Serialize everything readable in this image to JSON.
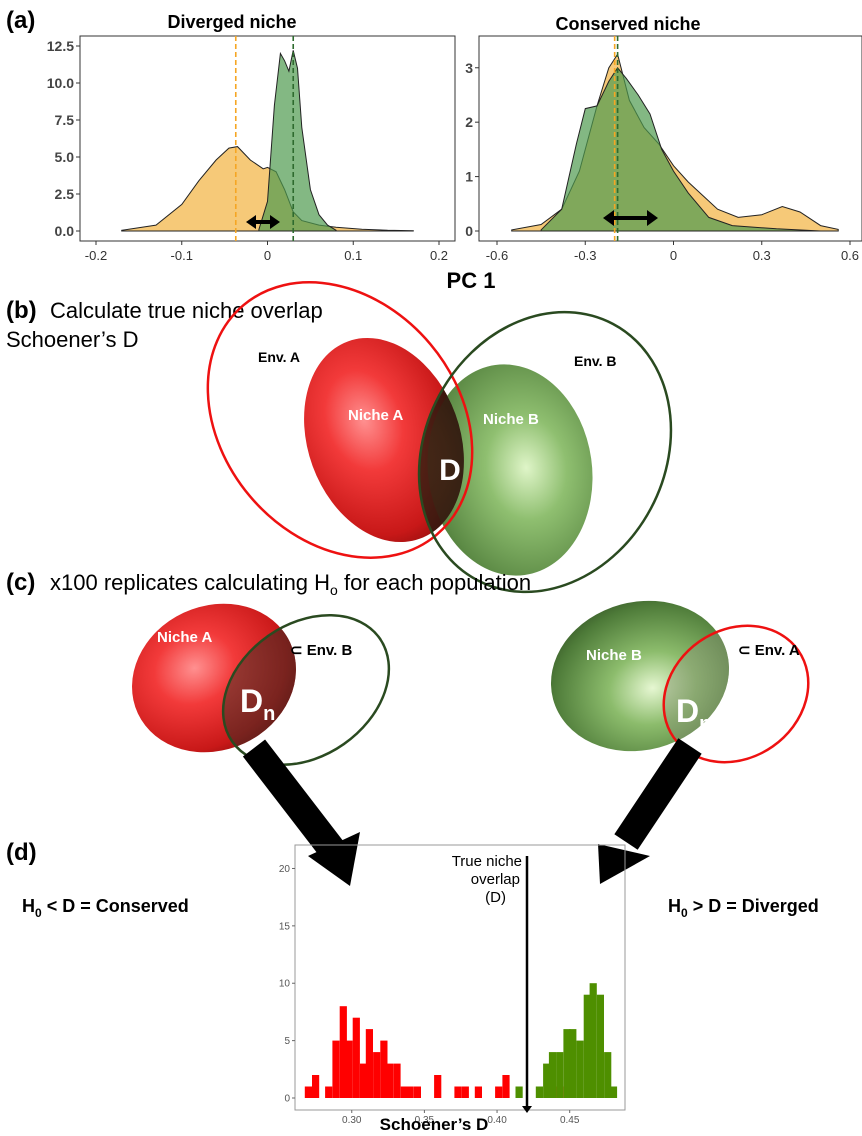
{
  "panel_a": {
    "label": "(a)",
    "xlabel": "PC 1",
    "left": {
      "title": "Diverged niche",
      "xticks": [
        "-0.2",
        "-0.1",
        "0",
        "0.1",
        "0.2"
      ],
      "yticks": [
        "0.0",
        "2.5",
        "5.0",
        "7.5",
        "10.0",
        "12.5"
      ]
    },
    "right": {
      "title": "Conserved niche",
      "xticks": [
        "-0.6",
        "-0.3",
        "0",
        "0.3",
        "0.6"
      ],
      "yticks": [
        "0",
        "1",
        "2",
        "3"
      ]
    }
  },
  "panel_b": {
    "label": "(b)",
    "title_line1": "Calculate true niche overlap",
    "title_line2": "Schoener’s D",
    "env_a": "Env. A",
    "env_b": "Env. B",
    "niche_a": "Niche A",
    "niche_b": "Niche B",
    "overlap": "D"
  },
  "panel_c": {
    "label": "(c)",
    "title_pre": "x100 replicates calculating H",
    "title_sub": "o",
    "title_post": " for each population",
    "left_niche": "Niche A",
    "left_env": "⊂ Env. B",
    "right_niche": "Niche B",
    "right_env": "⊂ Env. A",
    "dn": "D",
    "dn_sub": "n"
  },
  "panel_d": {
    "label": "(d)",
    "left_text_pre": "H",
    "left_text_sub": "0",
    "left_text_post": " < D = Conserved",
    "right_text_pre": "H",
    "right_text_sub": "0",
    "right_text_post": " > D = Diverged",
    "annotation_lines": [
      "True niche",
      "overlap",
      "(D)"
    ],
    "xlabel": "Schoener’s D",
    "xticks": [
      "0.30",
      "0.35",
      "0.40",
      "0.45"
    ],
    "yticks": [
      "0",
      "5",
      "10",
      "15",
      "20"
    ]
  },
  "colors": {
    "niche_a_red": "#e02020",
    "niche_b_green": "#6a9a50",
    "density_yellow": "#f5c060",
    "density_green": "#4f9a4f",
    "hist_red": "#ff0000",
    "hist_green": "#4e8f00"
  },
  "chart_data": [
    {
      "type": "area",
      "title": "Diverged niche",
      "xlabel": "PC 1",
      "xlim": [
        -0.2,
        0.2
      ],
      "ylim": [
        0,
        12.5
      ],
      "series": [
        {
          "name": "",
          "color": "#f5c060",
          "x": [
            -0.17,
            -0.13,
            -0.1,
            -0.08,
            -0.06,
            -0.045,
            -0.035,
            -0.02,
            -0.005,
            0.0,
            0.01,
            0.02,
            0.03,
            0.04,
            0.06,
            0.08,
            0.11,
            0.14,
            0.17
          ],
          "y": [
            0.05,
            0.4,
            1.8,
            3.4,
            4.8,
            5.6,
            5.7,
            4.8,
            4.2,
            4.3,
            4.0,
            2.8,
            1.3,
            0.7,
            0.4,
            0.25,
            0.12,
            0.05,
            0.02
          ]
        },
        {
          "name": "",
          "color": "#4f9a4f",
          "x": [
            -0.01,
            0.0,
            0.008,
            0.015,
            0.02,
            0.025,
            0.03,
            0.035,
            0.04,
            0.05,
            0.06,
            0.07,
            0.08
          ],
          "y": [
            0.1,
            2.0,
            8.5,
            12.0,
            11.5,
            10.8,
            12.2,
            11.0,
            7.0,
            2.8,
            1.1,
            0.4,
            0.05
          ]
        }
      ],
      "vlines": [
        {
          "x": -0.037,
          "color": "#f5a623"
        },
        {
          "x": 0.03,
          "color": "#2e6b2e"
        }
      ]
    },
    {
      "type": "area",
      "title": "Conserved niche",
      "xlabel": "PC 1",
      "xlim": [
        -0.6,
        0.6
      ],
      "ylim": [
        0,
        3.4
      ],
      "series": [
        {
          "name": "",
          "color": "#f5c060",
          "x": [
            -0.55,
            -0.45,
            -0.38,
            -0.32,
            -0.26,
            -0.22,
            -0.19,
            -0.15,
            -0.1,
            -0.05,
            0.0,
            0.05,
            0.1,
            0.15,
            0.22,
            0.3,
            0.37,
            0.43,
            0.5,
            0.56
          ],
          "y": [
            0.02,
            0.12,
            0.4,
            1.1,
            2.3,
            3.0,
            3.25,
            2.4,
            1.9,
            1.6,
            1.2,
            0.9,
            0.65,
            0.4,
            0.25,
            0.3,
            0.45,
            0.35,
            0.1,
            0.03
          ]
        },
        {
          "name": "",
          "color": "#4f9a4f",
          "x": [
            -0.45,
            -0.38,
            -0.33,
            -0.3,
            -0.26,
            -0.22,
            -0.19,
            -0.16,
            -0.12,
            -0.08,
            -0.04,
            0.0,
            0.05,
            0.12,
            0.2,
            0.35,
            0.5
          ],
          "y": [
            0.02,
            0.4,
            1.6,
            2.25,
            2.3,
            2.75,
            3.0,
            2.8,
            2.5,
            2.15,
            1.5,
            1.1,
            0.7,
            0.25,
            0.1,
            0.04,
            0.0
          ]
        }
      ],
      "vlines": [
        {
          "x": -0.2,
          "color": "#f5a623"
        },
        {
          "x": -0.19,
          "color": "#2e6b2e"
        }
      ]
    },
    {
      "type": "bar",
      "title": "",
      "xlabel": "Schoener’s D",
      "ylabel": "",
      "xlim": [
        0.263,
        0.486
      ],
      "ylim": [
        0,
        21
      ],
      "bin_width": 0.00466,
      "true_D": 0.419,
      "series": [
        {
          "name": "",
          "color": "#ff0000",
          "bins": [
            {
              "x": 0.27,
              "y": 1
            },
            {
              "x": 0.275,
              "y": 2
            },
            {
              "x": 0.28,
              "y": 0
            },
            {
              "x": 0.284,
              "y": 1
            },
            {
              "x": 0.289,
              "y": 5
            },
            {
              "x": 0.294,
              "y": 8
            },
            {
              "x": 0.298,
              "y": 5
            },
            {
              "x": 0.303,
              "y": 7
            },
            {
              "x": 0.308,
              "y": 3
            },
            {
              "x": 0.312,
              "y": 6
            },
            {
              "x": 0.317,
              "y": 4
            },
            {
              "x": 0.322,
              "y": 5
            },
            {
              "x": 0.326,
              "y": 3
            },
            {
              "x": 0.331,
              "y": 3
            },
            {
              "x": 0.336,
              "y": 1
            },
            {
              "x": 0.34,
              "y": 1
            },
            {
              "x": 0.345,
              "y": 1
            },
            {
              "x": 0.359,
              "y": 2
            },
            {
              "x": 0.373,
              "y": 1
            },
            {
              "x": 0.378,
              "y": 1
            },
            {
              "x": 0.387,
              "y": 1
            },
            {
              "x": 0.401,
              "y": 1
            },
            {
              "x": 0.406,
              "y": 2
            },
            {
              "x": 0.443,
              "y": 1
            }
          ]
        },
        {
          "name": "",
          "color": "#4e8f00",
          "bins": [
            {
              "x": 0.415,
              "y": 1
            },
            {
              "x": 0.429,
              "y": 1
            },
            {
              "x": 0.434,
              "y": 3
            },
            {
              "x": 0.438,
              "y": 4
            },
            {
              "x": 0.443,
              "y": 4
            },
            {
              "x": 0.448,
              "y": 6
            },
            {
              "x": 0.452,
              "y": 6
            },
            {
              "x": 0.457,
              "y": 5
            },
            {
              "x": 0.462,
              "y": 9
            },
            {
              "x": 0.466,
              "y": 10
            },
            {
              "x": 0.471,
              "y": 9
            },
            {
              "x": 0.476,
              "y": 4
            },
            {
              "x": 0.48,
              "y": 1
            }
          ]
        }
      ]
    }
  ]
}
